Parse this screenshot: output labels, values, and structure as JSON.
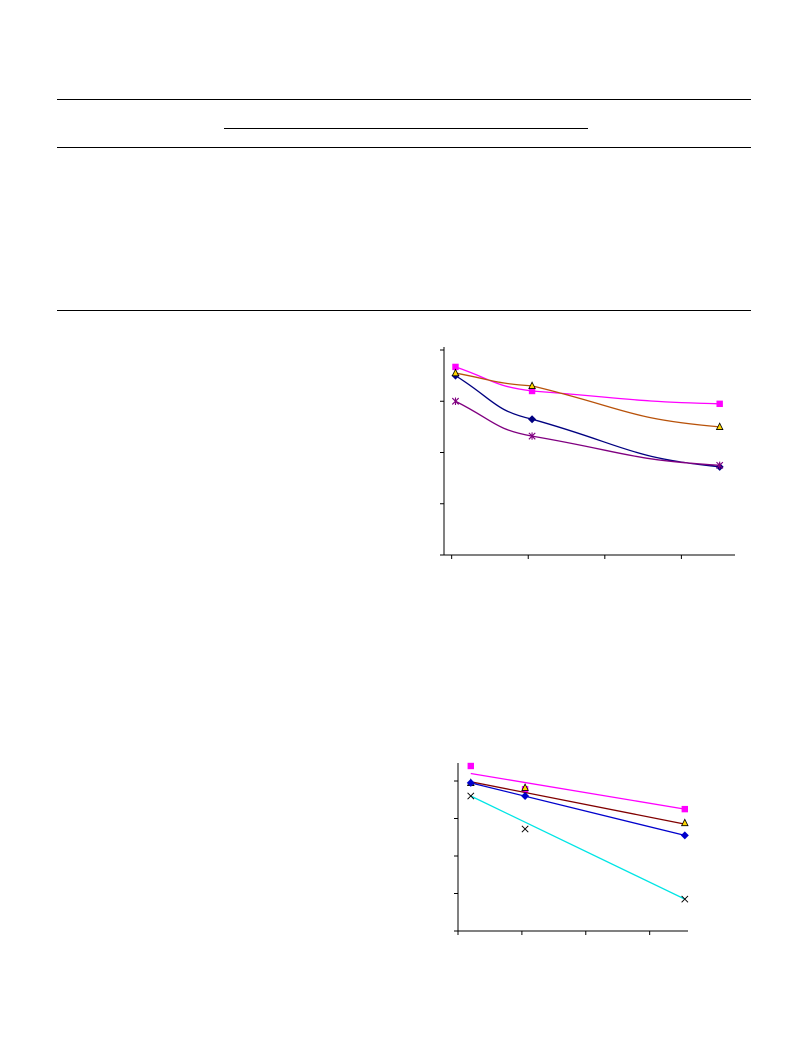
{
  "chart_data": [
    {
      "type": "line",
      "title": "",
      "xlabel": "",
      "ylabel": "",
      "x": [
        0.05,
        1.05,
        3.5
      ],
      "xlim": [
        -0.1,
        3.7
      ],
      "ylim": [
        0,
        4
      ],
      "x_ticks": [
        0,
        1,
        2,
        3
      ],
      "y_ticks": [
        0,
        1,
        2,
        3,
        4
      ],
      "grid": false,
      "series": [
        {
          "color": "#000080",
          "marker": "diamond",
          "values": [
            3.5,
            2.65,
            1.72
          ]
        },
        {
          "color": "#ff00ff",
          "marker": "square",
          "values": [
            3.67,
            3.2,
            2.95
          ]
        },
        {
          "color": "#b8520a",
          "marker": "triangle",
          "values": [
            3.55,
            3.3,
            2.5
          ]
        },
        {
          "color": "#800080",
          "marker": "asterisk",
          "values": [
            3.0,
            2.32,
            1.75
          ]
        }
      ]
    },
    {
      "type": "scatter",
      "title": "",
      "xlabel": "",
      "ylabel": "",
      "x": [
        0.2,
        1.05,
        3.55
      ],
      "xlim": [
        0,
        3.6
      ],
      "ylim": [
        0,
        4.4
      ],
      "x_ticks": [
        0,
        1,
        2,
        3
      ],
      "y_ticks": [
        0,
        1,
        2,
        3,
        4
      ],
      "grid": false,
      "series": [
        {
          "color": "#ff00ff",
          "marker": "square",
          "values": [
            4.4,
            3.78,
            3.25
          ],
          "trend": [
            4.2,
            3.25
          ]
        },
        {
          "color": "#800000",
          "marker": "triangle",
          "values": [
            3.95,
            3.82,
            2.88
          ],
          "trend": [
            3.98,
            2.85
          ]
        },
        {
          "color": "#0000cc",
          "marker": "diamond",
          "values": [
            3.95,
            3.6,
            2.55
          ],
          "trend": [
            3.95,
            2.55
          ]
        },
        {
          "color": "#00e5e5",
          "marker": "cross",
          "values": [
            3.6,
            2.72,
            0.85
          ],
          "trend": [
            3.6,
            0.85
          ]
        }
      ]
    }
  ]
}
